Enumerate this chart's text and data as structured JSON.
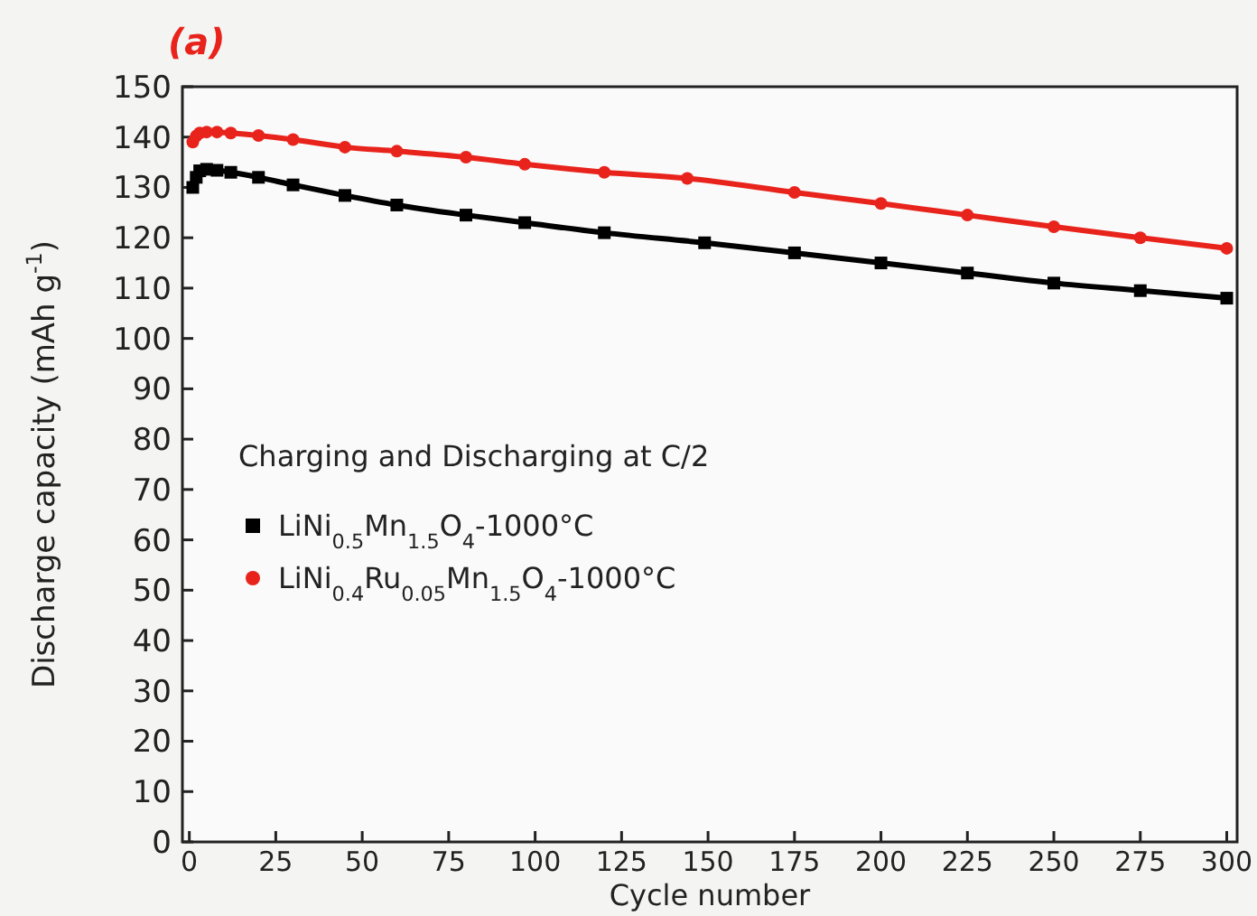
{
  "chart_data": {
    "type": "line",
    "title": "(a)",
    "xlabel": "Cycle number",
    "ylabel": "Discharge capacity (mAh g$^{-1}$)",
    "legend_title": "Charging and Discharging at C/2",
    "legend": "left",
    "xlim": [
      -2,
      303
    ],
    "ylim": [
      0,
      150
    ],
    "xticks": [
      0,
      25,
      50,
      75,
      100,
      125,
      150,
      175,
      200,
      225,
      250,
      275,
      300
    ],
    "yticks": [
      0,
      10,
      20,
      30,
      40,
      50,
      60,
      70,
      80,
      90,
      100,
      110,
      120,
      130,
      140,
      150
    ],
    "series": [
      {
        "name": "LiNi$_{0.5}$Mn$_{1.5}$O$_{4}$-1000°C",
        "color": "#000000",
        "marker": "square",
        "x": [
          1,
          2,
          3,
          5,
          8,
          12,
          20,
          30,
          45,
          60,
          80,
          97,
          120,
          149,
          175,
          200,
          225,
          250,
          275,
          300
        ],
        "values": [
          130,
          132,
          133.3,
          133.6,
          133.4,
          133,
          132,
          130.5,
          128.4,
          126.5,
          124.5,
          123,
          121,
          119,
          117,
          115,
          113,
          111,
          109.5,
          108
        ]
      },
      {
        "name": "LiNi$_{0.4}$Ru$_{0.05}$Mn$_{1.5}$O$_{4}$-1000°C",
        "color": "#e8231c",
        "marker": "circle",
        "x": [
          1,
          2,
          3,
          5,
          8,
          12,
          20,
          30,
          45,
          60,
          80,
          97,
          120,
          144,
          175,
          200,
          225,
          250,
          275,
          300
        ],
        "values": [
          139,
          140.2,
          140.8,
          141,
          141,
          140.8,
          140.3,
          139.5,
          138,
          137.2,
          136,
          134.6,
          133,
          131.8,
          129,
          126.8,
          124.5,
          122.2,
          120,
          117.9
        ]
      }
    ]
  }
}
